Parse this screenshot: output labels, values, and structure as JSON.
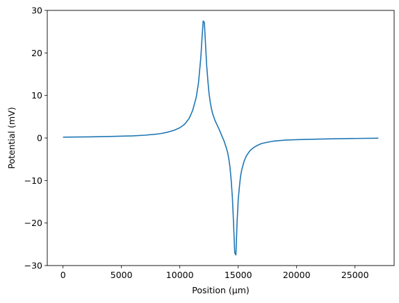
{
  "chart_data": {
    "type": "line",
    "xlabel": "Position (µm)",
    "ylabel": "Potential (mV)",
    "xlim": [
      -1350,
      28350
    ],
    "ylim": [
      -30,
      30
    ],
    "xticks": [
      0,
      5000,
      10000,
      15000,
      20000,
      25000
    ],
    "yticks": [
      -30,
      -20,
      -10,
      0,
      10,
      20,
      30
    ],
    "grid": false,
    "line_color": "#1f77b4",
    "series": [
      {
        "x": [
          0,
          2000,
          4000,
          6000,
          7000,
          8000,
          8500,
          9000,
          9500,
          10000,
          10400,
          10800,
          11100,
          11400,
          11600,
          11800,
          11900,
          12000,
          12100,
          12200,
          12300,
          12400,
          12500,
          12600,
          12700,
          12800,
          13000,
          13200,
          13400,
          13600,
          13800,
          14000,
          14100,
          14200,
          14300,
          14400,
          14500,
          14600,
          14700,
          14800,
          14900,
          15000,
          15100,
          15200,
          15300,
          15500,
          15700,
          16000,
          16300,
          16600,
          17000,
          17500,
          18000,
          19000,
          20000,
          22000,
          24000,
          27000
        ],
        "y": [
          0.2,
          0.25,
          0.35,
          0.5,
          0.65,
          0.9,
          1.1,
          1.4,
          1.8,
          2.4,
          3.2,
          4.6,
          6.5,
          9.5,
          13.0,
          19.0,
          23.5,
          27.5,
          27.2,
          22.0,
          17.0,
          13.5,
          10.5,
          8.5,
          7.0,
          5.8,
          4.2,
          3.0,
          1.8,
          0.5,
          -0.8,
          -2.5,
          -3.5,
          -5.0,
          -7.0,
          -10.0,
          -14.0,
          -20.0,
          -27.0,
          -27.5,
          -20.0,
          -14.5,
          -11.5,
          -9.0,
          -7.5,
          -5.5,
          -4.2,
          -3.0,
          -2.3,
          -1.8,
          -1.3,
          -1.0,
          -0.75,
          -0.5,
          -0.4,
          -0.25,
          -0.15,
          -0.05
        ]
      }
    ]
  }
}
